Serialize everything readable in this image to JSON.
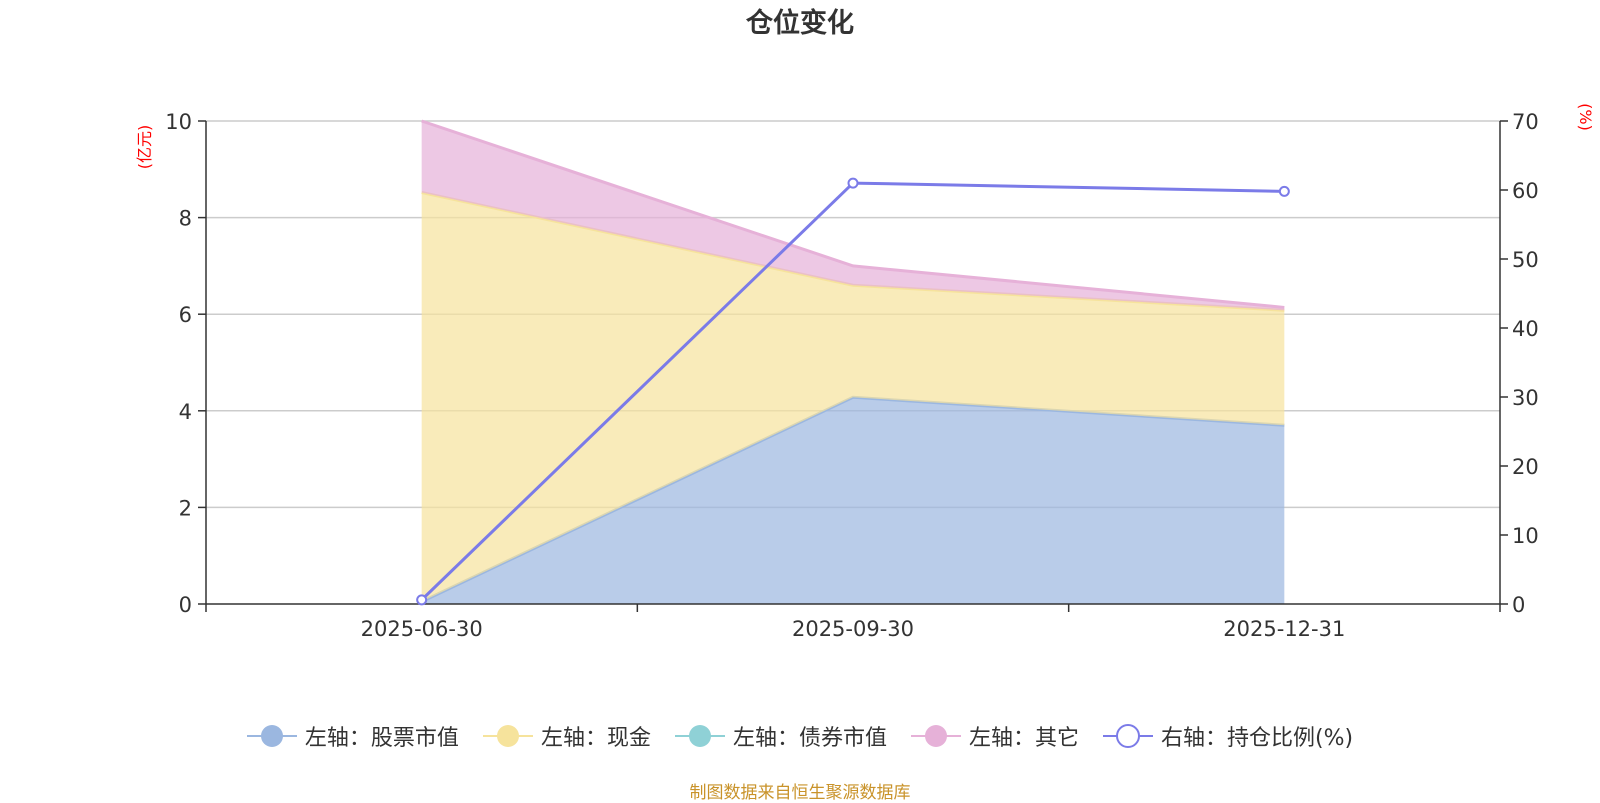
{
  "title": "仓位变化",
  "source_note": "制图数据来自恒生聚源数据库",
  "chart_data": {
    "type": "area",
    "title": "仓位变化",
    "categories": [
      "2025-06-30",
      "2025-09-30",
      "2025-12-31"
    ],
    "y_left": {
      "unit": "(亿元)",
      "range": [
        0,
        10
      ],
      "ticks": [
        "0",
        "2",
        "4",
        "6",
        "8",
        "10"
      ]
    },
    "y_right": {
      "unit": "(%)",
      "range": [
        0,
        70
      ],
      "ticks": [
        "0",
        "10",
        "20",
        "30",
        "40",
        "50",
        "60",
        "70"
      ]
    },
    "stacked": true,
    "grid": true,
    "legend_position": "bottom",
    "series": [
      {
        "name": "左轴：股票市值",
        "axis": "left",
        "type": "area",
        "color": "#9bb7e0",
        "values": [
          0.05,
          4.28,
          3.7
        ]
      },
      {
        "name": "左轴：现金",
        "axis": "left",
        "type": "area",
        "color": "#f6e39c",
        "values": [
          8.47,
          2.32,
          2.38
        ]
      },
      {
        "name": "左轴：债券市值",
        "axis": "left",
        "type": "area",
        "color": "#8fd1d6",
        "values": [
          0,
          0,
          0
        ]
      },
      {
        "name": "左轴：其它",
        "axis": "left",
        "type": "area",
        "color": "#e6b1d8",
        "values": [
          1.48,
          0.4,
          0.06
        ]
      },
      {
        "name": "右轴：持仓比例(%)",
        "axis": "right",
        "type": "line",
        "color": "#7b7be8",
        "values": [
          0.6,
          61.0,
          59.8
        ]
      }
    ]
  }
}
